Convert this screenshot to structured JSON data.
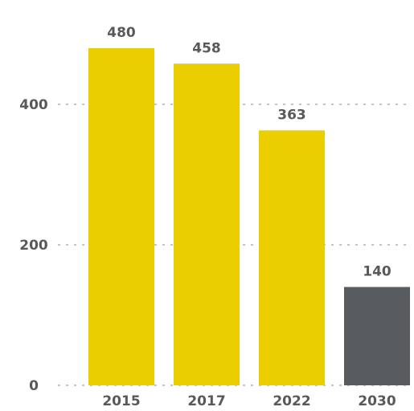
{
  "chart_data": {
    "type": "bar",
    "categories": [
      "2015",
      "2017",
      "2022",
      "2030"
    ],
    "values": [
      480,
      458,
      363,
      140
    ],
    "data_labels": [
      "480",
      "458",
      "363",
      "140"
    ],
    "bar_colors": [
      "#ebce00",
      "#ebce00",
      "#ebce00",
      "#595c5f"
    ],
    "y_ticks": [
      0,
      200,
      400
    ],
    "y_tick_labels": [
      "0",
      "200",
      "400"
    ],
    "ylim": [
      0,
      480
    ],
    "grid": true,
    "grid_color": "#b0b0b0",
    "label_color": "#595959",
    "title": "",
    "xlabel": "",
    "ylabel": ""
  }
}
